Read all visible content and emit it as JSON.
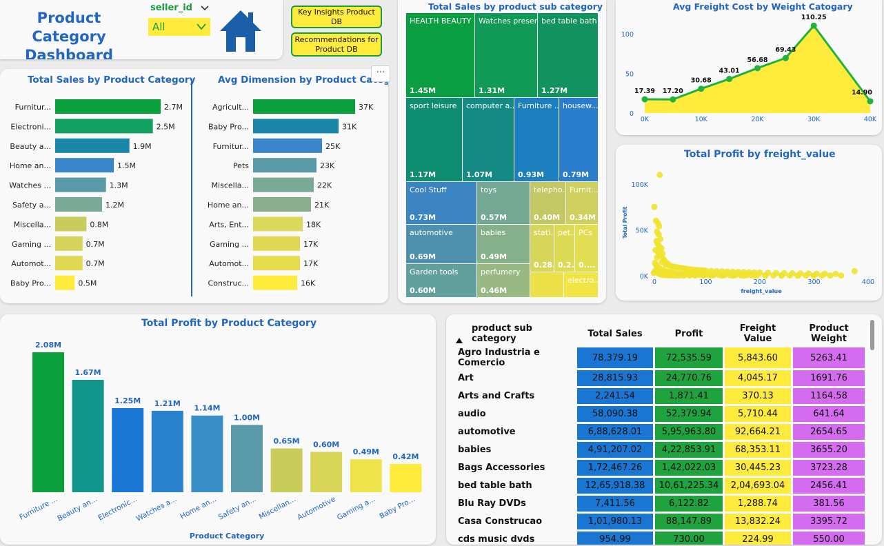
{
  "header": {
    "title_line1": "Product Category",
    "title_line2": "Dashboard",
    "slicer_label": "seller_id",
    "slicer_value": "All",
    "btn_insights": "Key Insights Product DB",
    "btn_recommend": "Recommendations for Product DB",
    "colors": {
      "title": "#2166c4",
      "button_bg": "#ffeb3b",
      "button_border": "#1b9a3c",
      "home_icon": "#1a5ea8"
    }
  },
  "sales_by_category": {
    "title": "Total Sales by Product Category",
    "chart_data": {
      "type": "bar",
      "orientation": "horizontal",
      "categories": [
        "Furnitur...",
        "Electroni...",
        "Beauty a...",
        "Home an...",
        "Watches ...",
        "Safety a...",
        "Miscella...",
        "Gaming ...",
        "Automot...",
        "Baby Pro..."
      ],
      "values": [
        2.7,
        2.5,
        1.9,
        1.5,
        1.3,
        1.2,
        0.8,
        0.7,
        0.7,
        0.5
      ],
      "labels": [
        "2.7M",
        "2.5M",
        "1.9M",
        "1.5M",
        "1.3M",
        "1.2M",
        "0.8M",
        "0.7M",
        "0.7M",
        "0.5M"
      ],
      "colors": [
        "#0aa03c",
        "#12a060",
        "#1a86a8",
        "#3a86cc",
        "#5a9aa8",
        "#7aaa96",
        "#c8cc5a",
        "#d4d45a",
        "#e0d850",
        "#ffeb3b"
      ]
    }
  },
  "avg_dimension": {
    "title": "Avg Dimension by Product Category",
    "chart_data": {
      "type": "bar",
      "orientation": "horizontal",
      "categories": [
        "Agricult...",
        "Baby Pro...",
        "Furnitur...",
        "Pets",
        "Miscella...",
        "Home an...",
        "Arts, Ent...",
        "Gaming ...",
        "Automot...",
        "Construc..."
      ],
      "values": [
        37,
        31,
        25,
        23,
        22,
        21,
        18,
        17,
        17,
        16
      ],
      "labels": [
        "37K",
        "31K",
        "25K",
        "23K",
        "22K",
        "21K",
        "18K",
        "17K",
        "17K",
        "16K"
      ],
      "colors": [
        "#0aa03c",
        "#1a86a8",
        "#3a86cc",
        "#5a9aa8",
        "#7aaa96",
        "#8aae8a",
        "#dcd85a",
        "#e0d850",
        "#e6dc4c",
        "#ffeb3b"
      ]
    }
  },
  "profit_by_category": {
    "title": "Total Profit by Product Category",
    "chart_data": {
      "type": "bar",
      "categories": [
        "Furniture ...",
        "Beauty an...",
        "Electronic...",
        "Watches a...",
        "Home an...",
        "Safety an...",
        "Miscellan...",
        "Automotive",
        "Gaming a...",
        "Baby Pro..."
      ],
      "values": [
        2.08,
        1.67,
        1.25,
        1.21,
        1.14,
        1.0,
        0.65,
        0.6,
        0.49,
        0.42
      ],
      "labels": [
        "2.08M",
        "1.67M",
        "1.25M",
        "1.21M",
        "1.14M",
        "1.00M",
        "0.65M",
        "0.60M",
        "0.49M",
        "0.42M"
      ],
      "xlabel": "Product Category",
      "colors": [
        "#0aa03c",
        "#12958a",
        "#1976d2",
        "#2b82cc",
        "#3a8ec8",
        "#5a9aa8",
        "#c8cc5a",
        "#d8d456",
        "#ece44a",
        "#ffeb3b"
      ]
    }
  },
  "sales_by_subcategory": {
    "title": "Total Sales by product sub category",
    "chart_data": {
      "type": "treemap",
      "items": [
        {
          "name": "HEALTH BEAUTY",
          "value": "1.45M",
          "color": "#0a9e42"
        },
        {
          "name": "Watches present",
          "value": "1.31M",
          "color": "#109a56"
        },
        {
          "name": "bed table bath",
          "value": "1.27M",
          "color": "#12925e"
        },
        {
          "name": "sport leisure",
          "value": "1.17M",
          "color": "#0f8d70"
        },
        {
          "name": "computer a...",
          "value": "1.07M",
          "color": "#138a84"
        },
        {
          "name": "Furniture ...",
          "value": "0.93M",
          "color": "#1c7fbf"
        },
        {
          "name": "housew...",
          "value": "0.79M",
          "color": "#2a7ccc"
        },
        {
          "name": "Cool Stuff",
          "value": "0.73M",
          "color": "#3a84c4"
        },
        {
          "name": "toys",
          "value": "0.57M",
          "color": "#74a894"
        },
        {
          "name": "telepho...",
          "value": "0.40M",
          "color": "#c4c864"
        },
        {
          "name": "Furnit...",
          "value": "0.34M",
          "color": "#cfd05e"
        },
        {
          "name": "automotive",
          "value": "0.69M",
          "color": "#4e90ae"
        },
        {
          "name": "babies",
          "value": "0.49M",
          "color": "#86b08a"
        },
        {
          "name": "stati...",
          "value": "0.28...",
          "color": "#d8d65a"
        },
        {
          "name": "pet...",
          "value": "0.2...",
          "color": "#ddda55"
        },
        {
          "name": "PCs",
          "value": "0....",
          "color": "#e2dd52"
        },
        {
          "name": "Garden tools",
          "value": "0.60M",
          "color": "#62a09e"
        },
        {
          "name": "perfumery",
          "value": "0.46M",
          "color": "#98b884"
        },
        {
          "name": "",
          "value": "",
          "color": "#ece248"
        },
        {
          "name": "electro...",
          "value": "",
          "color": "#f1e546"
        }
      ]
    }
  },
  "avg_freight": {
    "title": "Avg Freight Cost by Weight Catogary",
    "chart_data": {
      "type": "area",
      "x": [
        0,
        5000,
        10000,
        15000,
        20000,
        25000,
        30000,
        40000
      ],
      "y": [
        17.39,
        17.2,
        30.68,
        43.01,
        56.68,
        69.43,
        110.25,
        14.9
      ],
      "labels": [
        "17.39",
        "17.20",
        "30.68",
        "43.01",
        "56.68",
        "69.43",
        "110.25",
        "14.90"
      ],
      "xticks": [
        "0K",
        "10K",
        "20K",
        "30K",
        "40K"
      ],
      "yticks": [
        "0",
        "50",
        "100"
      ],
      "ylim": [
        0,
        120
      ],
      "xlim": [
        0,
        40000
      ],
      "line_color": "#1fb33e",
      "fill_color": "#ffeb3b"
    }
  },
  "profit_by_freight": {
    "title": "Total Profit by freight_value",
    "chart_data": {
      "type": "scatter",
      "xlabel": "freight_value",
      "ylabel": "Total Profit",
      "xticks": [
        "0",
        "100",
        "200",
        "300",
        "400"
      ],
      "yticks": [
        "0K",
        "50K",
        "100K"
      ],
      "xlim": [
        0,
        400
      ],
      "ylim": [
        0,
        115000
      ],
      "color": "#f0e22a",
      "points": [
        [
          15,
          110000
        ],
        [
          5,
          75000
        ],
        [
          14,
          54000
        ],
        [
          12,
          57000
        ],
        [
          8,
          60000
        ],
        [
          10,
          48000
        ],
        [
          13,
          45000
        ],
        [
          16,
          40000
        ],
        [
          9,
          38000
        ],
        [
          11,
          35000
        ],
        [
          14,
          32000
        ],
        [
          18,
          30000
        ],
        [
          7,
          28000
        ],
        [
          12,
          26000
        ],
        [
          20,
          24000
        ],
        [
          16,
          22000
        ],
        [
          10,
          20000
        ],
        [
          22,
          18000
        ],
        [
          24,
          16000
        ],
        [
          19,
          15000
        ],
        [
          27,
          14000
        ],
        [
          30,
          13000
        ],
        [
          26,
          12000
        ],
        [
          33,
          11000
        ],
        [
          36,
          10500
        ],
        [
          40,
          10000
        ],
        [
          45,
          9500
        ],
        [
          50,
          9000
        ],
        [
          55,
          8500
        ],
        [
          60,
          8000
        ],
        [
          65,
          7500
        ],
        [
          70,
          7000
        ],
        [
          75,
          6800
        ],
        [
          80,
          6500
        ],
        [
          85,
          6200
        ],
        [
          90,
          6000
        ],
        [
          95,
          5800
        ],
        [
          100,
          5500
        ],
        [
          110,
          5200
        ],
        [
          120,
          5000
        ],
        [
          130,
          4800
        ],
        [
          140,
          4500
        ],
        [
          150,
          4300
        ],
        [
          160,
          4100
        ],
        [
          170,
          3900
        ],
        [
          180,
          3700
        ],
        [
          190,
          3600
        ],
        [
          200,
          3400
        ],
        [
          215,
          3200
        ],
        [
          230,
          3000
        ],
        [
          245,
          2800
        ],
        [
          260,
          2600
        ],
        [
          275,
          2500
        ],
        [
          290,
          2400
        ],
        [
          305,
          2300
        ],
        [
          320,
          2200
        ],
        [
          340,
          2100
        ],
        [
          375,
          5000
        ],
        [
          6,
          14000
        ],
        [
          8,
          12000
        ],
        [
          11,
          10000
        ],
        [
          13,
          9000
        ],
        [
          15,
          8000
        ],
        [
          17,
          7000
        ],
        [
          21,
          6000
        ],
        [
          25,
          5000
        ],
        [
          29,
          4500
        ],
        [
          34,
          4000
        ],
        [
          38,
          3500
        ],
        [
          42,
          3000
        ],
        [
          48,
          2600
        ],
        [
          53,
          2200
        ],
        [
          58,
          2000
        ],
        [
          63,
          1800
        ],
        [
          68,
          1600
        ],
        [
          73,
          1400
        ],
        [
          78,
          1300
        ],
        [
          83,
          1200
        ],
        [
          88,
          1100
        ],
        [
          93,
          1000
        ],
        [
          98,
          900
        ],
        [
          105,
          850
        ],
        [
          115,
          800
        ],
        [
          125,
          750
        ],
        [
          135,
          700
        ],
        [
          145,
          650
        ],
        [
          155,
          600
        ],
        [
          165,
          550
        ],
        [
          175,
          500
        ],
        [
          185,
          450
        ],
        [
          195,
          420
        ],
        [
          210,
          400
        ],
        [
          225,
          380
        ],
        [
          240,
          360
        ],
        [
          255,
          340
        ],
        [
          270,
          320
        ],
        [
          285,
          300
        ],
        [
          300,
          280
        ],
        [
          315,
          260
        ],
        [
          330,
          240
        ],
        [
          350,
          220
        ],
        [
          4,
          3000
        ],
        [
          6,
          5000
        ],
        [
          9,
          7000
        ],
        [
          12,
          4000
        ],
        [
          14,
          2000
        ],
        [
          17,
          1500
        ],
        [
          20,
          1000
        ],
        [
          23,
          800
        ],
        [
          26,
          600
        ],
        [
          30,
          500
        ],
        [
          35,
          400
        ],
        [
          40,
          350
        ],
        [
          46,
          300
        ],
        [
          52,
          250
        ],
        [
          60,
          200
        ],
        [
          70,
          180
        ],
        [
          80,
          160
        ],
        [
          95,
          140
        ],
        [
          110,
          120
        ],
        [
          130,
          100
        ],
        [
          150,
          90
        ],
        [
          170,
          80
        ],
        [
          190,
          70
        ],
        [
          210,
          60
        ],
        [
          240,
          50
        ],
        [
          270,
          40
        ],
        [
          300,
          30
        ]
      ]
    }
  },
  "table": {
    "headers": [
      "product sub category",
      "Total Sales",
      "Profit",
      "Freight Value",
      "Product Weight"
    ],
    "rows": [
      [
        "Agro Industria e Comercio",
        "78,379.19",
        "72,535.59",
        "5,843.60",
        "5263.41"
      ],
      [
        "Art",
        "28,815.93",
        "24,770.76",
        "4,045.17",
        "1691.76"
      ],
      [
        "Arts and Crafts",
        "2,241.54",
        "1,871.41",
        "370.13",
        "1164.58"
      ],
      [
        "audio",
        "58,090.38",
        "52,379.94",
        "5,710.44",
        "641.64"
      ],
      [
        "automotive",
        "6,88,628.01",
        "5,95,963.80",
        "92,664.21",
        "2654.65"
      ],
      [
        "babies",
        "4,91,207.02",
        "4,22,853.91",
        "68,353.11",
        "3655.20"
      ],
      [
        "Bags Accessories",
        "1,72,467.26",
        "1,42,022.03",
        "30,445.23",
        "3723.28"
      ],
      [
        "bed table bath",
        "12,65,918.38",
        "10,61,225.34",
        "2,04,693.04",
        "2456.41"
      ],
      [
        "Blu Ray DVDs",
        "7,411.56",
        "6,122.82",
        "1,288.74",
        "381.56"
      ],
      [
        "Casa Construcao",
        "1,01,980.13",
        "88,147.89",
        "13,832.24",
        "3395.72"
      ],
      [
        "cds music dvds",
        "954.99",
        "730.00",
        "224.99",
        "550.00"
      ]
    ],
    "colors": {
      "sales": "#1976d2",
      "profit": "#1fa33e",
      "freight": "#ffeb3b",
      "weight": "#d56cf0"
    }
  }
}
